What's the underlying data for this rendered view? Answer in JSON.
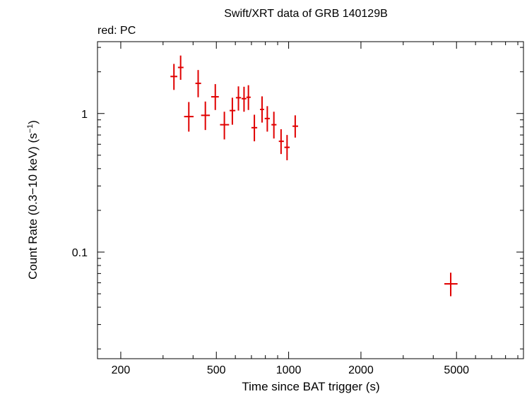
{
  "chart_data": {
    "type": "scatter",
    "title": "Swift/XRT data of GRB 140129B",
    "subtitle": "red: PC",
    "xlabel": "Time since BAT trigger (s)",
    "ylabel_main": "Count Rate (0.3−10 keV) (s",
    "ylabel_sup": "−1",
    "ylabel_close": ")",
    "x_scale": "log",
    "y_scale": "log",
    "xlim": [
      160,
      9500
    ],
    "ylim": [
      0.017,
      3.3
    ],
    "x_ticks": [
      {
        "value": 200,
        "label": "200"
      },
      {
        "value": 500,
        "label": "500"
      },
      {
        "value": 1000,
        "label": "1000"
      },
      {
        "value": 2000,
        "label": "2000"
      },
      {
        "value": 5000,
        "label": "5000"
      }
    ],
    "y_ticks": [
      {
        "value": 1,
        "label": "1"
      },
      {
        "value": 0.1,
        "label": "0.1"
      }
    ],
    "color": "#e00000",
    "series": [
      {
        "name": "PC",
        "points": [
          {
            "x": 333,
            "y": 1.85,
            "xerr": [
              322,
              344
            ],
            "yerr": [
              1.48,
              2.28
            ]
          },
          {
            "x": 355,
            "y": 2.15,
            "xerr": [
              346,
              365
            ],
            "yerr": [
              1.75,
              2.62
            ]
          },
          {
            "x": 384,
            "y": 0.95,
            "xerr": [
              367,
              402
            ],
            "yerr": [
              0.74,
              1.21
            ]
          },
          {
            "x": 420,
            "y": 1.65,
            "xerr": [
              409,
              432
            ],
            "yerr": [
              1.31,
              2.06
            ]
          },
          {
            "x": 450,
            "y": 0.97,
            "xerr": [
              432,
              470
            ],
            "yerr": [
              0.76,
              1.22
            ]
          },
          {
            "x": 495,
            "y": 1.32,
            "xerr": [
              476,
              512
            ],
            "yerr": [
              1.06,
              1.63
            ]
          },
          {
            "x": 540,
            "y": 0.83,
            "xerr": [
              518,
              565
            ],
            "yerr": [
              0.65,
              1.03
            ]
          },
          {
            "x": 583,
            "y": 1.05,
            "xerr": [
              568,
              600
            ],
            "yerr": [
              0.83,
              1.3
            ]
          },
          {
            "x": 618,
            "y": 1.3,
            "xerr": [
              603,
              634
            ],
            "yerr": [
              1.05,
              1.57
            ]
          },
          {
            "x": 652,
            "y": 1.28,
            "xerr": [
              637,
              667
            ],
            "yerr": [
              1.03,
              1.56
            ]
          },
          {
            "x": 680,
            "y": 1.31,
            "xerr": [
              667,
              695
            ],
            "yerr": [
              1.06,
              1.6
            ]
          },
          {
            "x": 720,
            "y": 0.79,
            "xerr": [
              700,
              740
            ],
            "yerr": [
              0.63,
              0.98
            ]
          },
          {
            "x": 775,
            "y": 1.07,
            "xerr": [
              760,
              790
            ],
            "yerr": [
              0.86,
              1.33
            ]
          },
          {
            "x": 815,
            "y": 0.92,
            "xerr": [
              795,
              835
            ],
            "yerr": [
              0.74,
              1.13
            ]
          },
          {
            "x": 868,
            "y": 0.83,
            "xerr": [
              848,
              890
            ],
            "yerr": [
              0.66,
              1.03
            ]
          },
          {
            "x": 930,
            "y": 0.63,
            "xerr": [
              910,
              955
            ],
            "yerr": [
              0.51,
              0.77
            ]
          },
          {
            "x": 985,
            "y": 0.57,
            "xerr": [
              960,
              1010
            ],
            "yerr": [
              0.46,
              0.7
            ]
          },
          {
            "x": 1065,
            "y": 0.81,
            "xerr": [
              1038,
              1095
            ],
            "yerr": [
              0.67,
              0.97
            ]
          },
          {
            "x": 4730,
            "y": 0.059,
            "xerr": [
              4450,
              5050
            ],
            "yerr": [
              0.048,
              0.071
            ]
          }
        ]
      }
    ]
  }
}
